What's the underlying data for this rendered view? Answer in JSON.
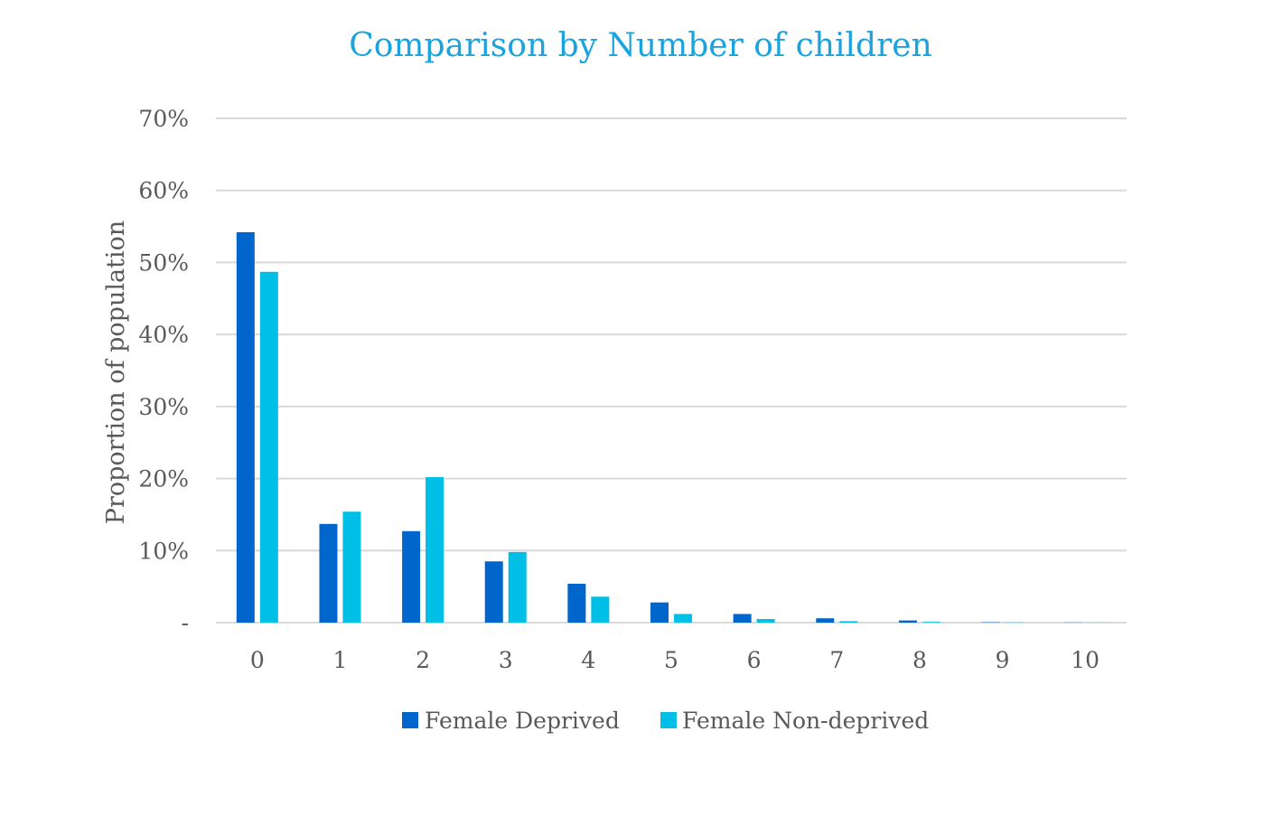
{
  "chart_data": {
    "type": "bar",
    "title": "Comparison by Number of children",
    "xlabel": "",
    "ylabel": "Proportion of population",
    "categories": [
      "0",
      "1",
      "2",
      "3",
      "4",
      "5",
      "6",
      "7",
      "8",
      "9",
      "10"
    ],
    "y_tick_labels": [
      "-",
      "10%",
      "20%",
      "30%",
      "40%",
      "50%",
      "60%",
      "70%"
    ],
    "ylim": [
      0,
      70
    ],
    "grid": true,
    "legend_position": "bottom",
    "series": [
      {
        "name": "Female Deprived",
        "color": "#0066cc",
        "values": [
          54.2,
          13.7,
          12.7,
          8.5,
          5.4,
          2.8,
          1.2,
          0.6,
          0.3,
          0.05,
          0.02
        ]
      },
      {
        "name": "Female Non-deprived",
        "color": "#00bfe6",
        "values": [
          48.7,
          15.4,
          20.2,
          9.8,
          3.6,
          1.2,
          0.5,
          0.2,
          0.1,
          0.03,
          0.01
        ]
      }
    ]
  }
}
